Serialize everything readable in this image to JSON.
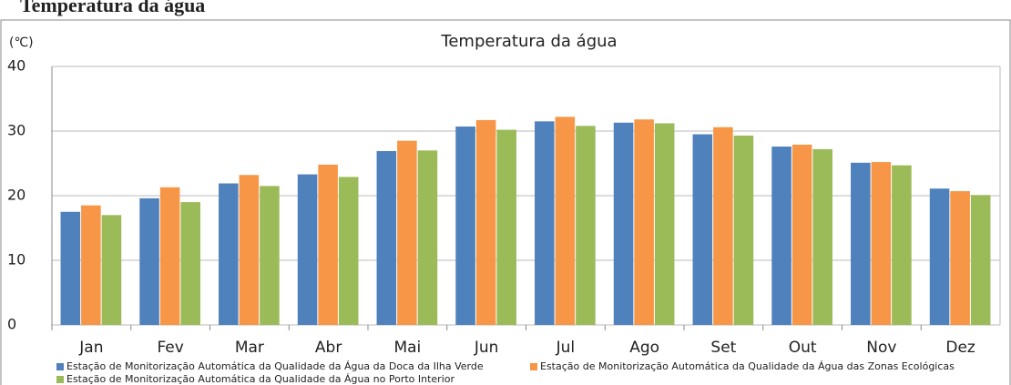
{
  "page_title": "Temperatura da água",
  "chart_data": {
    "type": "bar",
    "title": "Temperatura da água",
    "y_label": "(℃)",
    "categories": [
      "Jan",
      "Fev",
      "Mar",
      "Abr",
      "Mai",
      "Jun",
      "Jul",
      "Ago",
      "Set",
      "Out",
      "Nov",
      "Dez"
    ],
    "series": [
      {
        "name": "Estação de Monitorização Automática da Qualidade da Água da Doca da Ilha Verde",
        "color": "#4f81bd",
        "values": [
          17.5,
          19.6,
          21.9,
          23.3,
          26.9,
          30.7,
          31.5,
          31.3,
          29.5,
          27.6,
          25.1,
          21.1
        ]
      },
      {
        "name": "Estação de Monitorização Automática da Qualidade da Água das Zonas Ecológicas",
        "color": "#f79646",
        "values": [
          18.5,
          21.3,
          23.2,
          24.8,
          28.5,
          31.7,
          32.2,
          31.8,
          30.6,
          27.9,
          25.2,
          20.7
        ]
      },
      {
        "name": "Estação de Monitorização Automática da Qualidade da Água no Porto Interior",
        "color": "#9bbb59",
        "values": [
          17.0,
          19.0,
          21.5,
          22.9,
          27.0,
          30.2,
          30.8,
          31.2,
          29.3,
          27.2,
          24.7,
          20.1
        ]
      }
    ],
    "ylim": [
      0,
      40
    ],
    "yticks": [
      0,
      10,
      20,
      30,
      40
    ],
    "grid": true
  }
}
